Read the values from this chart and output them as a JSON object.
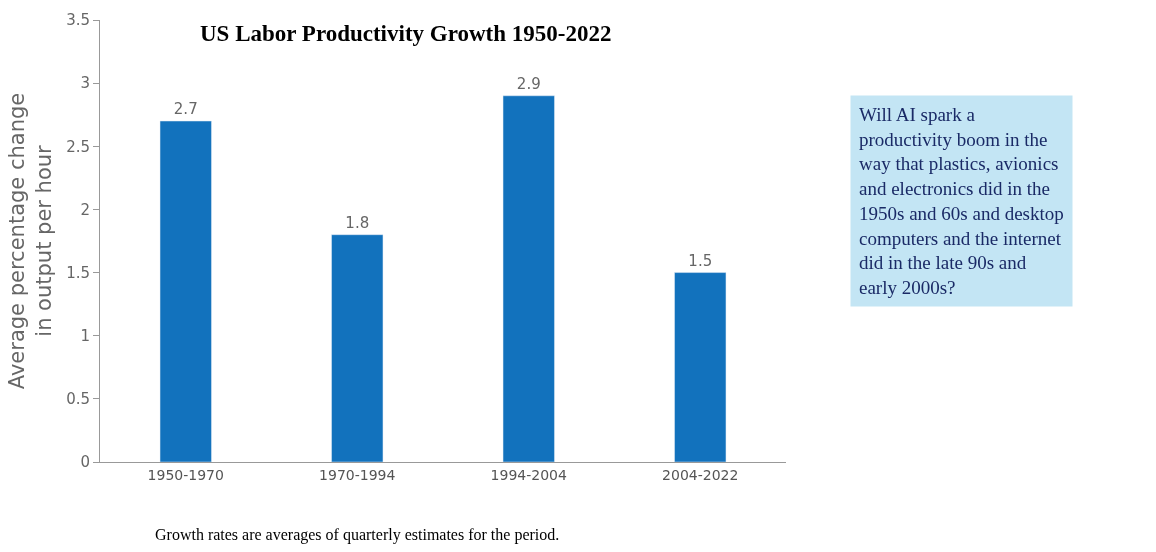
{
  "chart_data": {
    "type": "bar",
    "title": "US Labor Productivity Growth 1950-2022",
    "ylabel": "Average percentage change in output per hour",
    "categories": [
      "1950-1970",
      "1970-1994",
      "1994-2004",
      "2004-2022"
    ],
    "values": [
      2.7,
      1.8,
      2.9,
      1.5
    ],
    "color": "#1272bd",
    "data_labels": true,
    "ylim": [
      0,
      3.5
    ],
    "yticks": [
      0,
      0.5,
      1,
      1.5,
      2,
      2.5,
      3,
      3.5
    ],
    "annotations": [
      "Will AI spark a productivity boom in the way that plastics, avionics and electronics did in the 1950s and 60s and desktop computers and the internet did in the late 90s and early 2000s?",
      "Growth rates are averages of quarterly estimates for the period."
    ]
  }
}
